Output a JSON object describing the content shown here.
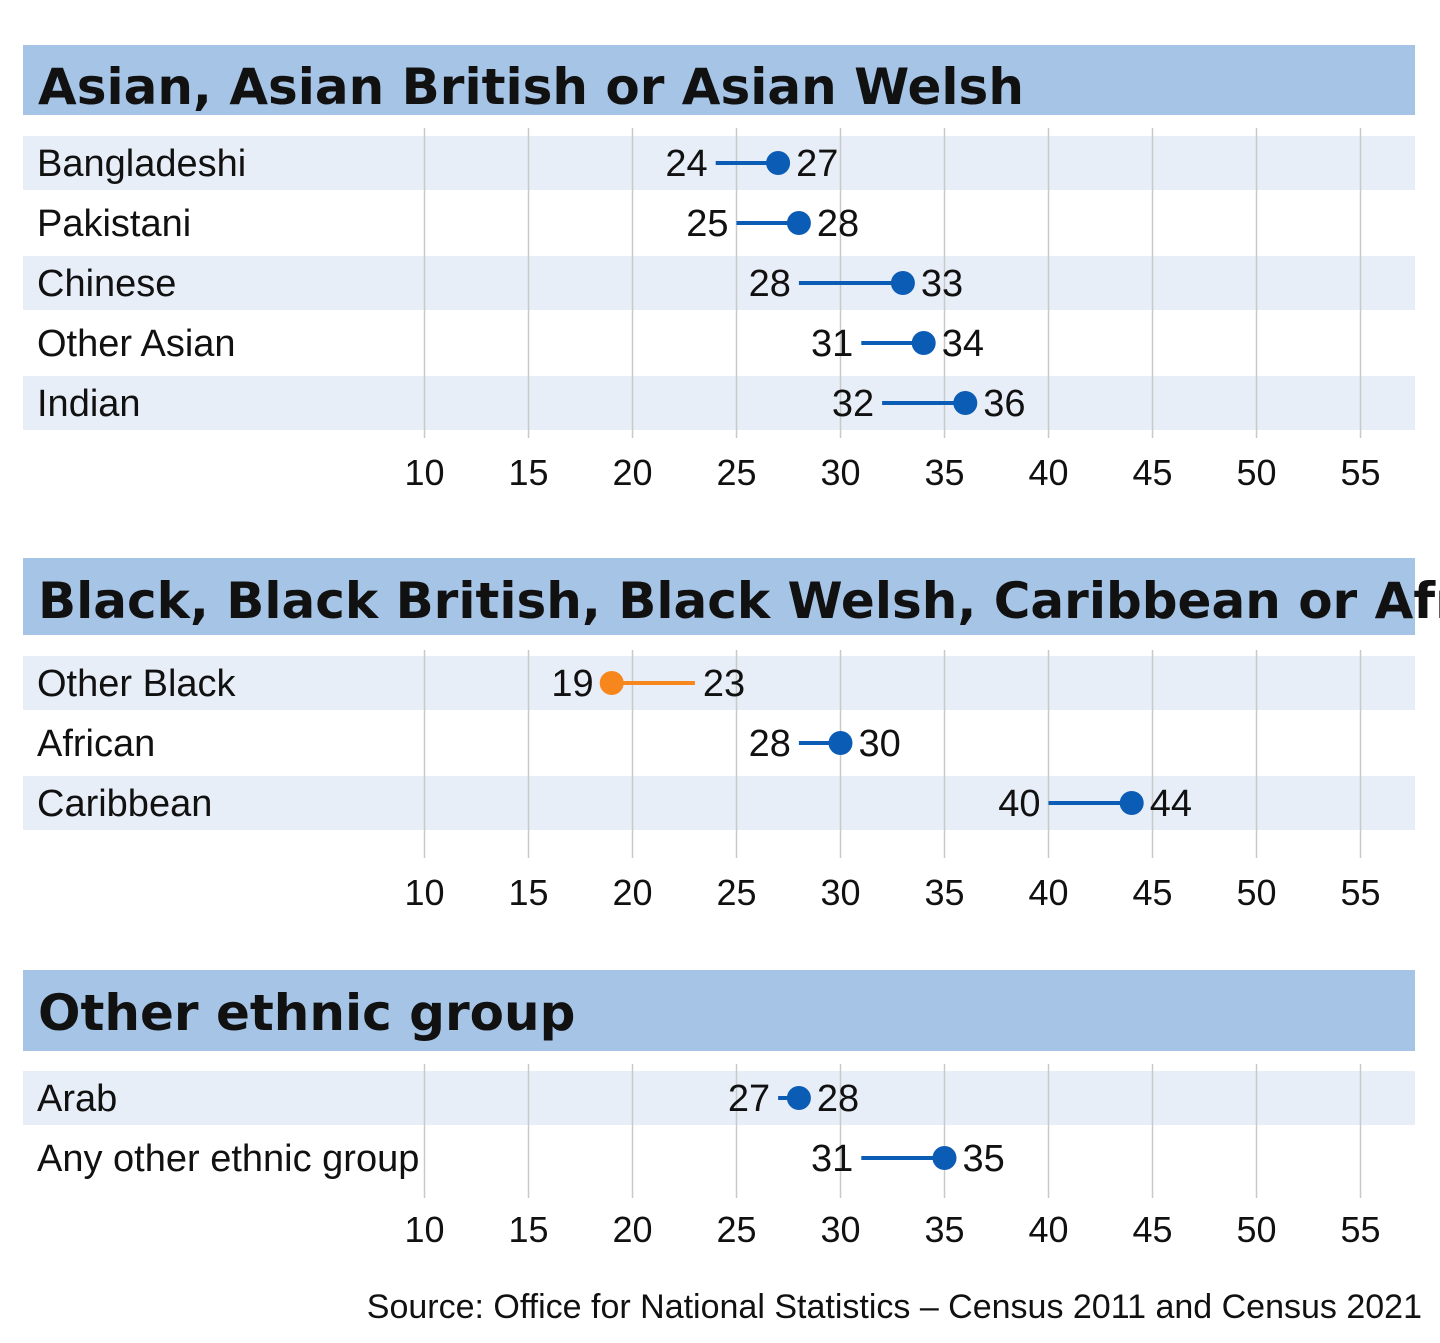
{
  "chart_data": [
    {
      "type": "dumbbell",
      "title": "Asian, Asian British or Asian Welsh",
      "xlim": [
        10,
        55
      ],
      "ticks": [
        "10",
        "15",
        "20",
        "25",
        "30",
        "35",
        "40",
        "45",
        "50",
        "55"
      ],
      "rows": [
        {
          "label": "Bangladeshi",
          "start": 24,
          "end": 27,
          "start_label": "24",
          "end_label": "27",
          "direction": "up"
        },
        {
          "label": "Pakistani",
          "start": 25,
          "end": 28,
          "start_label": "25",
          "end_label": "28",
          "direction": "up"
        },
        {
          "label": "Chinese",
          "start": 28,
          "end": 33,
          "start_label": "28",
          "end_label": "33",
          "direction": "up"
        },
        {
          "label": "Other Asian",
          "start": 31,
          "end": 34,
          "start_label": "31",
          "end_label": "34",
          "direction": "up"
        },
        {
          "label": "Indian",
          "start": 32,
          "end": 36,
          "start_label": "32",
          "end_label": "36",
          "direction": "up"
        }
      ]
    },
    {
      "type": "dumbbell",
      "title": "Black, Black British, Black Welsh, Caribbean or African",
      "xlim": [
        10,
        55
      ],
      "ticks": [
        "10",
        "15",
        "20",
        "25",
        "30",
        "35",
        "40",
        "45",
        "50",
        "55"
      ],
      "rows": [
        {
          "label": "Other Black",
          "start": 23,
          "end": 19,
          "start_label": "23",
          "end_label": "19",
          "direction": "down"
        },
        {
          "label": "African",
          "start": 28,
          "end": 30,
          "start_label": "28",
          "end_label": "30",
          "direction": "up"
        },
        {
          "label": "Caribbean",
          "start": 40,
          "end": 44,
          "start_label": "40",
          "end_label": "44",
          "direction": "up"
        }
      ]
    },
    {
      "type": "dumbbell",
      "title": "Other ethnic group",
      "xlim": [
        10,
        55
      ],
      "ticks": [
        "10",
        "15",
        "20",
        "25",
        "30",
        "35",
        "40",
        "45",
        "50",
        "55"
      ],
      "rows": [
        {
          "label": "Arab",
          "start": 27,
          "end": 28,
          "start_label": "27",
          "end_label": "28",
          "direction": "up"
        },
        {
          "label": "Any other ethnic group",
          "start": 31,
          "end": 35,
          "start_label": "31",
          "end_label": "35",
          "direction": "up"
        }
      ]
    }
  ],
  "source": "Source: Office for National Statistics – Census 2011 and Census 2021",
  "colors": {
    "header_bg": "#a6c4e6",
    "band": "#e8eef8",
    "grid": "#c9c9c9",
    "increase": "#0b5cb5",
    "decrease": "#f7861c",
    "text": "#111111"
  }
}
